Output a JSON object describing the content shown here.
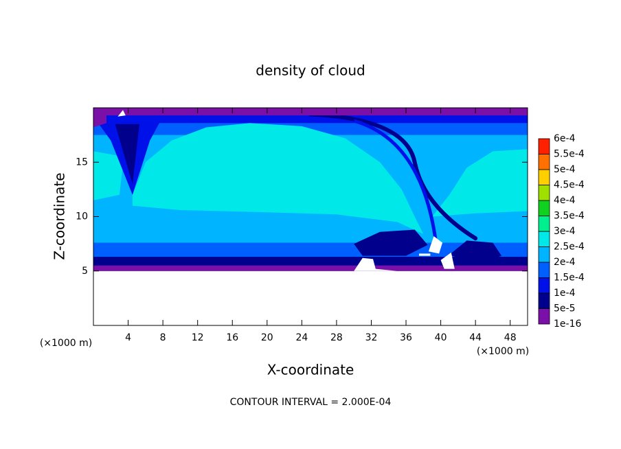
{
  "chart_data": {
    "type": "contour",
    "title": "density of cloud",
    "x_label": "X-coordinate",
    "y_label": "Z-coordinate",
    "x_unit_label": "(×1000 m)",
    "y_unit_label": "(×1000 m)",
    "footer": "CONTOUR INTERVAL = 2.000E-04",
    "xlim": [
      0,
      50
    ],
    "xticks": [
      4,
      8,
      12,
      16,
      20,
      24,
      28,
      32,
      36,
      40,
      44,
      48
    ],
    "ylim": [
      0,
      20
    ],
    "yticks": [
      5,
      10,
      15
    ],
    "colorbar": {
      "levels": [
        {
          "value": 1e-16,
          "label": "1e-16"
        },
        {
          "value": 5e-05,
          "label": "5e-5"
        },
        {
          "value": 0.0001,
          "label": "1e-4"
        },
        {
          "value": 0.00015,
          "label": "1.5e-4"
        },
        {
          "value": 0.0002,
          "label": "2e-4"
        },
        {
          "value": 0.00025,
          "label": "2.5e-4"
        },
        {
          "value": 0.0003,
          "label": "3e-4"
        },
        {
          "value": 0.00035,
          "label": "3.5e-4"
        },
        {
          "value": 0.0004,
          "label": "4e-4"
        },
        {
          "value": 0.00045,
          "label": "4.5e-4"
        },
        {
          "value": 0.0005,
          "label": "5e-4"
        },
        {
          "value": 0.00055,
          "label": "5.5e-4"
        },
        {
          "value": 0.0006,
          "label": "6e-4"
        }
      ],
      "colors": [
        "#7b10a8",
        "#00008c",
        "#0010e8",
        "#0060ff",
        "#00b4ff",
        "#00e8e8",
        "#00f090",
        "#10d020",
        "#a0e000",
        "#ffd000",
        "#ff7000",
        "#ff2000"
      ]
    }
  }
}
